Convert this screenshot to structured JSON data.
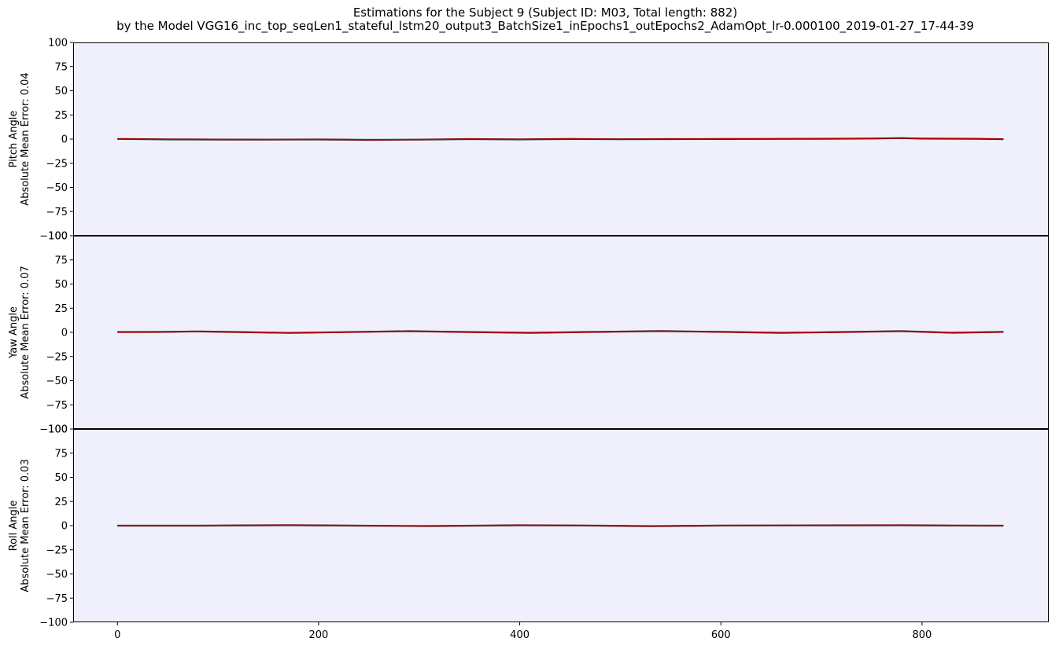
{
  "figure": {
    "title_line1": "Estimations for the Subject 9 (Subject ID: M03, Total length: 882)",
    "title_line2": "by the Model VGG16_inc_top_seqLen1_stateful_lstm20_output3_BatchSize1_inEpochs1_outEpochs2_AdamOpt_lr-0.000100_2019-01-27_17-44-39"
  },
  "colors": {
    "plot_background": "#f0f0fc",
    "ground_truth_line": "#1a1a1a",
    "estimation_line": "#c00000"
  },
  "chart_data": [
    {
      "type": "line",
      "ylabel_line1": "Pitch Angle",
      "ylabel_line2": "Absolute Mean Error: 0.04",
      "xlim": [
        -44,
        926
      ],
      "ylim": [
        -100,
        100
      ],
      "xticks": [
        0,
        200,
        400,
        600,
        800
      ],
      "yticks": [
        -100,
        -75,
        -50,
        -25,
        0,
        25,
        50,
        75,
        100
      ],
      "xtick_labels": [
        "0",
        "200",
        "400",
        "600",
        "800"
      ],
      "ytick_labels": [
        "−100",
        "−75",
        "−50",
        "−25",
        "0",
        "25",
        "50",
        "75",
        "100"
      ],
      "series": [
        {
          "x": [
            0,
            50,
            100,
            150,
            200,
            250,
            300,
            350,
            400,
            450,
            500,
            550,
            600,
            650,
            700,
            750,
            780,
            800,
            850,
            881
          ],
          "values": [
            0.2,
            -0.3,
            -0.5,
            -0.6,
            -0.4,
            -0.8,
            -0.6,
            0.0,
            -0.3,
            0.1,
            -0.2,
            0.0,
            0.1,
            0.2,
            0.3,
            0.6,
            1.0,
            0.5,
            0.3,
            -0.1
          ]
        },
        {
          "x": [
            0,
            50,
            100,
            150,
            200,
            250,
            300,
            350,
            400,
            450,
            500,
            550,
            600,
            650,
            700,
            750,
            780,
            800,
            850,
            881
          ],
          "values": [
            0.1,
            -0.2,
            -0.4,
            -0.5,
            -0.3,
            -0.7,
            -0.5,
            0.1,
            -0.2,
            0.2,
            -0.1,
            0.1,
            0.2,
            0.3,
            0.4,
            0.7,
            1.1,
            0.6,
            0.4,
            0.0
          ]
        }
      ]
    },
    {
      "type": "line",
      "ylabel_line1": "Yaw Angle",
      "ylabel_line2": "Absolute Mean Error: 0.07",
      "xlim": [
        -44,
        926
      ],
      "ylim": [
        -100,
        100
      ],
      "xticks": [
        0,
        200,
        400,
        600,
        800
      ],
      "yticks": [
        -100,
        -75,
        -50,
        -25,
        0,
        25,
        50,
        75,
        100
      ],
      "xtick_labels": [
        "0",
        "200",
        "400",
        "600",
        "800"
      ],
      "ytick_labels": [
        "−100",
        "−75",
        "−50",
        "−25",
        "0",
        "25",
        "50",
        "75",
        "100"
      ],
      "series": [
        {
          "x": [
            0,
            40,
            80,
            120,
            170,
            220,
            290,
            350,
            410,
            470,
            540,
            600,
            660,
            720,
            780,
            830,
            881
          ],
          "values": [
            0.3,
            0.4,
            1.0,
            0.3,
            -0.6,
            0.2,
            1.2,
            0.3,
            -0.5,
            0.4,
            1.3,
            0.5,
            -0.5,
            0.3,
            1.2,
            -0.4,
            0.5
          ]
        },
        {
          "x": [
            0,
            40,
            80,
            120,
            170,
            220,
            290,
            350,
            410,
            470,
            540,
            600,
            660,
            720,
            780,
            830,
            881
          ],
          "values": [
            0.2,
            0.3,
            0.9,
            0.2,
            -0.7,
            0.1,
            1.1,
            0.2,
            -0.6,
            0.3,
            1.2,
            0.4,
            -0.6,
            0.2,
            1.1,
            -0.5,
            0.4
          ]
        }
      ]
    },
    {
      "type": "line",
      "ylabel_line1": "Roll Angle",
      "ylabel_line2": "Absolute Mean Error: 0.03",
      "xlim": [
        -44,
        926
      ],
      "ylim": [
        -100,
        100
      ],
      "xticks": [
        0,
        200,
        400,
        600,
        800
      ],
      "yticks": [
        -100,
        -75,
        -50,
        -25,
        0,
        25,
        50,
        75,
        100
      ],
      "xtick_labels": [
        "0",
        "200",
        "400",
        "600",
        "800"
      ],
      "ytick_labels": [
        "−100",
        "−75",
        "−50",
        "−25",
        "0",
        "25",
        "50",
        "75",
        "100"
      ],
      "series": [
        {
          "x": [
            0,
            80,
            170,
            240,
            310,
            400,
            460,
            530,
            600,
            700,
            780,
            830,
            881
          ],
          "values": [
            0.0,
            0.0,
            0.5,
            0.0,
            -0.4,
            0.4,
            0.2,
            -0.5,
            0.1,
            0.3,
            0.4,
            0.1,
            0.0
          ]
        },
        {
          "x": [
            0,
            80,
            170,
            240,
            310,
            400,
            460,
            530,
            600,
            700,
            780,
            830,
            881
          ],
          "values": [
            0.1,
            0.1,
            0.6,
            0.1,
            -0.3,
            0.5,
            0.3,
            -0.4,
            0.2,
            0.4,
            0.5,
            0.2,
            0.1
          ]
        }
      ]
    }
  ]
}
